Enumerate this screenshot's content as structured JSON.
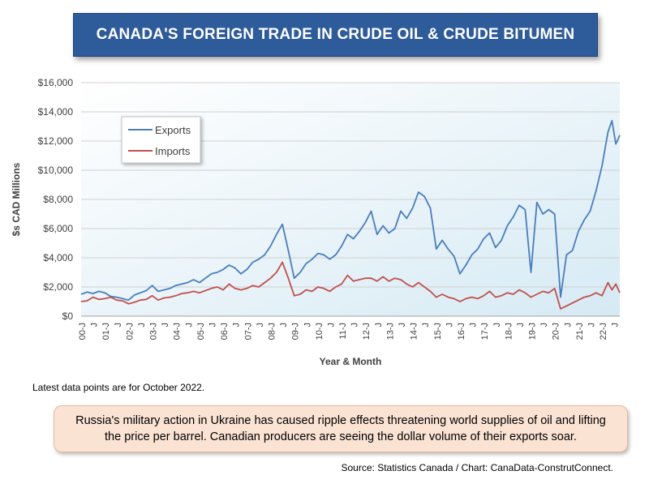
{
  "chart_data": {
    "type": "line",
    "title": "CANADA'S FOREIGN TRADE IN CRUDE OIL & CRUDE BITUMEN",
    "xlabel": "Year & Month",
    "ylabel": "$s CAD Millions",
    "ylim": [
      0,
      16000
    ],
    "yticks": [
      "$0",
      "$2,000",
      "$4,000",
      "$6,000",
      "$8,000",
      "$10,000",
      "$12,000",
      "$14,000",
      "$16,000"
    ],
    "xticks": [
      "00-J",
      "J",
      "01-J",
      "J",
      "02-J",
      "J",
      "03-J",
      "J",
      "04-J",
      "J",
      "05-J",
      "J",
      "06-J",
      "J",
      "07-J",
      "J",
      "08-J",
      "J",
      "09-J",
      "J",
      "10-J",
      "J",
      "11-J",
      "J",
      "12-J",
      "J",
      "13-J",
      "J",
      "14-J",
      "J",
      "15-J",
      "J",
      "16-J",
      "J",
      "17-J",
      "J",
      "18-J",
      "J",
      "19-J",
      "J",
      "20-J",
      "J",
      "21-J",
      "J",
      "22-J",
      "J"
    ],
    "grid": true,
    "legend_position": "top-left",
    "x_start": "2000-01",
    "x_end": "2022-10",
    "series": [
      {
        "name": "Exports",
        "color": "#4a7ebb",
        "points": [
          [
            "2000-01",
            1500
          ],
          [
            "2000-04",
            1650
          ],
          [
            "2000-07",
            1550
          ],
          [
            "2000-10",
            1700
          ],
          [
            "2001-01",
            1600
          ],
          [
            "2001-04",
            1350
          ],
          [
            "2001-07",
            1300
          ],
          [
            "2001-10",
            1200
          ],
          [
            "2002-01",
            1100
          ],
          [
            "2002-04",
            1450
          ],
          [
            "2002-07",
            1600
          ],
          [
            "2002-10",
            1750
          ],
          [
            "2003-01",
            2100
          ],
          [
            "2003-04",
            1700
          ],
          [
            "2003-07",
            1800
          ],
          [
            "2003-10",
            1900
          ],
          [
            "2004-01",
            2100
          ],
          [
            "2004-04",
            2200
          ],
          [
            "2004-07",
            2300
          ],
          [
            "2004-10",
            2500
          ],
          [
            "2005-01",
            2300
          ],
          [
            "2005-04",
            2600
          ],
          [
            "2005-07",
            2900
          ],
          [
            "2005-10",
            3000
          ],
          [
            "2006-01",
            3200
          ],
          [
            "2006-04",
            3500
          ],
          [
            "2006-07",
            3300
          ],
          [
            "2006-10",
            2900
          ],
          [
            "2007-01",
            3200
          ],
          [
            "2007-04",
            3700
          ],
          [
            "2007-07",
            3900
          ],
          [
            "2007-10",
            4200
          ],
          [
            "2008-01",
            4800
          ],
          [
            "2008-04",
            5600
          ],
          [
            "2008-07",
            6300
          ],
          [
            "2008-10",
            4500
          ],
          [
            "2009-01",
            2600
          ],
          [
            "2009-04",
            3000
          ],
          [
            "2009-07",
            3600
          ],
          [
            "2009-10",
            3900
          ],
          [
            "2010-01",
            4300
          ],
          [
            "2010-04",
            4200
          ],
          [
            "2010-07",
            3900
          ],
          [
            "2010-10",
            4200
          ],
          [
            "2011-01",
            4800
          ],
          [
            "2011-04",
            5600
          ],
          [
            "2011-07",
            5300
          ],
          [
            "2011-10",
            5800
          ],
          [
            "2012-01",
            6400
          ],
          [
            "2012-04",
            7200
          ],
          [
            "2012-07",
            5600
          ],
          [
            "2012-10",
            6200
          ],
          [
            "2013-01",
            5700
          ],
          [
            "2013-04",
            6000
          ],
          [
            "2013-07",
            7200
          ],
          [
            "2013-10",
            6700
          ],
          [
            "2014-01",
            7400
          ],
          [
            "2014-04",
            8500
          ],
          [
            "2014-07",
            8200
          ],
          [
            "2014-10",
            7400
          ],
          [
            "2015-01",
            4600
          ],
          [
            "2015-04",
            5200
          ],
          [
            "2015-07",
            4600
          ],
          [
            "2015-10",
            4100
          ],
          [
            "2016-01",
            2900
          ],
          [
            "2016-04",
            3500
          ],
          [
            "2016-07",
            4200
          ],
          [
            "2016-10",
            4600
          ],
          [
            "2017-01",
            5300
          ],
          [
            "2017-04",
            5700
          ],
          [
            "2017-07",
            4700
          ],
          [
            "2017-10",
            5200
          ],
          [
            "2018-01",
            6200
          ],
          [
            "2018-04",
            6800
          ],
          [
            "2018-07",
            7600
          ],
          [
            "2018-10",
            7300
          ],
          [
            "2019-01",
            3000
          ],
          [
            "2019-04",
            7800
          ],
          [
            "2019-07",
            7000
          ],
          [
            "2019-10",
            7300
          ],
          [
            "2020-01",
            7000
          ],
          [
            "2020-04",
            1300
          ],
          [
            "2020-07",
            4200
          ],
          [
            "2020-10",
            4500
          ],
          [
            "2021-01",
            5800
          ],
          [
            "2021-04",
            6600
          ],
          [
            "2021-07",
            7200
          ],
          [
            "2021-10",
            8600
          ],
          [
            "2022-01",
            10300
          ],
          [
            "2022-04",
            12600
          ],
          [
            "2022-06",
            13400
          ],
          [
            "2022-08",
            11800
          ],
          [
            "2022-10",
            12400
          ]
        ]
      },
      {
        "name": "Imports",
        "color": "#c0504d",
        "points": [
          [
            "2000-01",
            1000
          ],
          [
            "2000-04",
            1050
          ],
          [
            "2000-07",
            1300
          ],
          [
            "2000-10",
            1150
          ],
          [
            "2001-01",
            1200
          ],
          [
            "2001-04",
            1300
          ],
          [
            "2001-07",
            1100
          ],
          [
            "2001-10",
            1050
          ],
          [
            "2002-01",
            850
          ],
          [
            "2002-04",
            950
          ],
          [
            "2002-07",
            1100
          ],
          [
            "2002-10",
            1150
          ],
          [
            "2003-01",
            1400
          ],
          [
            "2003-04",
            1100
          ],
          [
            "2003-07",
            1250
          ],
          [
            "2003-10",
            1300
          ],
          [
            "2004-01",
            1400
          ],
          [
            "2004-04",
            1550
          ],
          [
            "2004-07",
            1600
          ],
          [
            "2004-10",
            1700
          ],
          [
            "2005-01",
            1600
          ],
          [
            "2005-04",
            1750
          ],
          [
            "2005-07",
            1900
          ],
          [
            "2005-10",
            2000
          ],
          [
            "2006-01",
            1800
          ],
          [
            "2006-04",
            2200
          ],
          [
            "2006-07",
            1900
          ],
          [
            "2006-10",
            1800
          ],
          [
            "2007-01",
            1900
          ],
          [
            "2007-04",
            2100
          ],
          [
            "2007-07",
            2000
          ],
          [
            "2007-10",
            2300
          ],
          [
            "2008-01",
            2600
          ],
          [
            "2008-04",
            3000
          ],
          [
            "2008-07",
            3700
          ],
          [
            "2008-10",
            2600
          ],
          [
            "2009-01",
            1400
          ],
          [
            "2009-04",
            1500
          ],
          [
            "2009-07",
            1800
          ],
          [
            "2009-10",
            1700
          ],
          [
            "2010-01",
            2000
          ],
          [
            "2010-04",
            1900
          ],
          [
            "2010-07",
            1700
          ],
          [
            "2010-10",
            2000
          ],
          [
            "2011-01",
            2200
          ],
          [
            "2011-04",
            2800
          ],
          [
            "2011-07",
            2400
          ],
          [
            "2011-10",
            2500
          ],
          [
            "2012-01",
            2600
          ],
          [
            "2012-04",
            2600
          ],
          [
            "2012-07",
            2400
          ],
          [
            "2012-10",
            2700
          ],
          [
            "2013-01",
            2400
          ],
          [
            "2013-04",
            2600
          ],
          [
            "2013-07",
            2500
          ],
          [
            "2013-10",
            2200
          ],
          [
            "2014-01",
            2000
          ],
          [
            "2014-04",
            2300
          ],
          [
            "2014-07",
            2000
          ],
          [
            "2014-10",
            1700
          ],
          [
            "2015-01",
            1300
          ],
          [
            "2015-04",
            1500
          ],
          [
            "2015-07",
            1300
          ],
          [
            "2015-10",
            1200
          ],
          [
            "2016-01",
            1000
          ],
          [
            "2016-04",
            1200
          ],
          [
            "2016-07",
            1300
          ],
          [
            "2016-10",
            1200
          ],
          [
            "2017-01",
            1400
          ],
          [
            "2017-04",
            1700
          ],
          [
            "2017-07",
            1300
          ],
          [
            "2017-10",
            1400
          ],
          [
            "2018-01",
            1600
          ],
          [
            "2018-04",
            1500
          ],
          [
            "2018-07",
            1800
          ],
          [
            "2018-10",
            1600
          ],
          [
            "2019-01",
            1300
          ],
          [
            "2019-04",
            1500
          ],
          [
            "2019-07",
            1700
          ],
          [
            "2019-10",
            1600
          ],
          [
            "2020-01",
            1900
          ],
          [
            "2020-04",
            500
          ],
          [
            "2020-07",
            700
          ],
          [
            "2020-10",
            900
          ],
          [
            "2021-01",
            1100
          ],
          [
            "2021-04",
            1300
          ],
          [
            "2021-07",
            1400
          ],
          [
            "2021-10",
            1600
          ],
          [
            "2022-01",
            1400
          ],
          [
            "2022-04",
            2300
          ],
          [
            "2022-06",
            1800
          ],
          [
            "2022-08",
            2200
          ],
          [
            "2022-10",
            1600
          ]
        ]
      }
    ]
  },
  "note": "Latest data points are for October 2022.",
  "callout": "Russia's military action in Ukraine has caused ripple effects threatening world supplies of oil and lifting the price per barrel. Canadian producers are seeing the dollar volume of their exports soar.",
  "source": "Source: Statistics Canada / Chart: CanaData-ConstrutConnect."
}
